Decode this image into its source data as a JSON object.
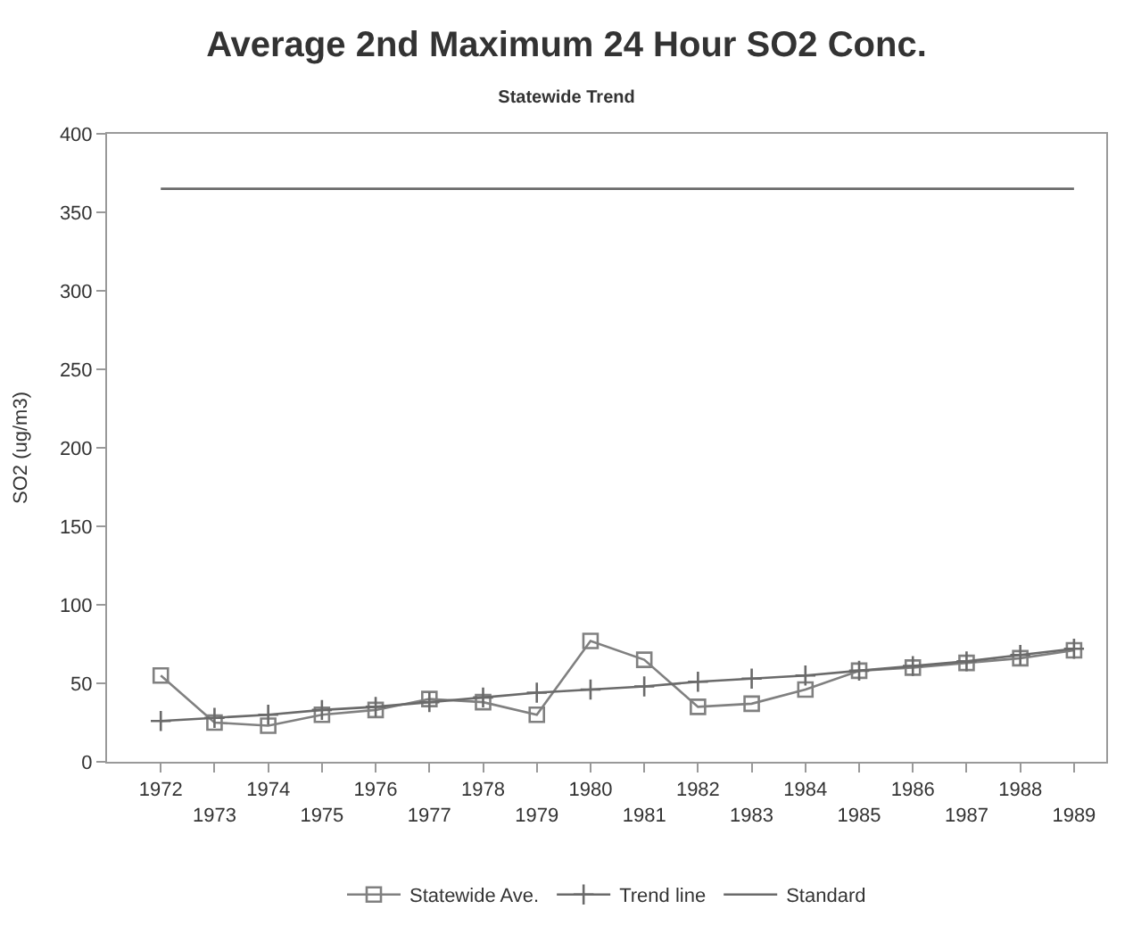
{
  "chart_data": {
    "type": "line",
    "title": "Average 2nd Maximum 24 Hour SO2 Conc.",
    "subtitle": "Statewide Trend",
    "ylabel": "SO2 (ug/m3)",
    "categories": [
      "1972",
      "1973",
      "1974",
      "1975",
      "1976",
      "1977",
      "1978",
      "1979",
      "1980",
      "1981",
      "1982",
      "1983",
      "1984",
      "1985",
      "1986",
      "1987",
      "1988",
      "1989"
    ],
    "series": [
      {
        "name": "Statewide Ave.",
        "color": "#808080",
        "marker": "square",
        "values": [
          55,
          25,
          23,
          30,
          33,
          40,
          38,
          30,
          77,
          65,
          35,
          37,
          46,
          58,
          60,
          63,
          66,
          71
        ]
      },
      {
        "name": "Trend line",
        "color": "#6a6a6a",
        "marker": "cross",
        "values": [
          26,
          28,
          30,
          33,
          35,
          38,
          41,
          44,
          46,
          48,
          51,
          53,
          55,
          58,
          61,
          64,
          68,
          72
        ]
      },
      {
        "name": "Standard",
        "color": "#6a6a6a",
        "marker": "none",
        "values": [
          365,
          365,
          365,
          365,
          365,
          365,
          365,
          365,
          365,
          365,
          365,
          365,
          365,
          365,
          365,
          365,
          365,
          365
        ]
      }
    ],
    "ylim": [
      0,
      400
    ],
    "yticks": [
      0,
      50,
      100,
      150,
      200,
      250,
      300,
      350,
      400
    ],
    "legend": "bottom"
  }
}
